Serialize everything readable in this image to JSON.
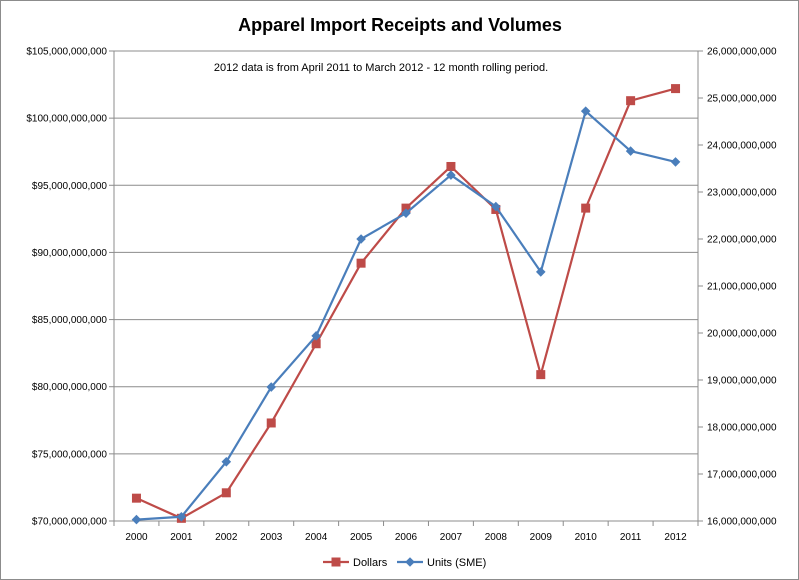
{
  "chart_data": {
    "type": "line",
    "title": "Apparel Import Receipts and Volumes",
    "annotation": "2012 data is from April 2011 to March 2012 - 12 month rolling period.",
    "xlabel": "",
    "ylabel": "",
    "categories": [
      "2000",
      "2001",
      "2002",
      "2003",
      "2004",
      "2005",
      "2006",
      "2007",
      "2008",
      "2009",
      "2010",
      "2011",
      "2012"
    ],
    "y_left": {
      "ylim": [
        70000000000,
        105000000000
      ],
      "tick_step": 5000000000,
      "tick_labels": [
        "$70,000,000,000",
        "$75,000,000,000",
        "$80,000,000,000",
        "$85,000,000,000",
        "$90,000,000,000",
        "$95,000,000,000",
        "$100,000,000,000",
        "$105,000,000,000"
      ]
    },
    "y_right": {
      "ylim": [
        16000000000,
        26000000000
      ],
      "tick_step": 1000000000,
      "tick_labels": [
        "16,000,000,000",
        "17,000,000,000",
        "18,000,000,000",
        "19,000,000,000",
        "20,000,000,000",
        "21,000,000,000",
        "22,000,000,000",
        "23,000,000,000",
        "24,000,000,000",
        "25,000,000,000",
        "26,000,000,000"
      ]
    },
    "series": [
      {
        "name": "Dollars",
        "axis": "left",
        "color": "#be4b48",
        "marker": "square",
        "values": [
          71700000000,
          70200000000,
          72100000000,
          77300000000,
          83200000000,
          89200000000,
          93300000000,
          96400000000,
          93200000000,
          80900000000,
          93300000000,
          101300000000,
          102200000000
        ]
      },
      {
        "name": "Units (SME)",
        "axis": "right",
        "color": "#4a7ebb",
        "marker": "diamond",
        "values": [
          16030000000,
          16090000000,
          17260000000,
          18850000000,
          19940000000,
          22000000000,
          22550000000,
          23360000000,
          22690000000,
          21300000000,
          24720000000,
          23870000000,
          23640000000
        ]
      }
    ],
    "grid": "horizontal",
    "legend_position": "bottom"
  }
}
